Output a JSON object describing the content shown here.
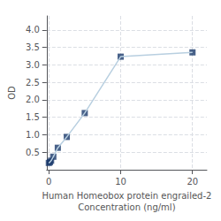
{
  "chart_data": {
    "type": "line",
    "xlabel": "Human Homeobox protein engrailed-2\nConcentration (ng/ml)",
    "ylabel": "OD",
    "x": [
      0,
      0.156,
      0.312,
      0.625,
      1.25,
      2.5,
      5,
      10,
      20
    ],
    "series": [
      {
        "type": "line",
        "color": "#b8cfe0",
        "values": [
          0.194,
          0.218,
          0.259,
          0.372,
          0.628,
          0.938,
          1.621,
          3.234,
          3.357
        ]
      },
      {
        "type": "scatter",
        "color": "#1a3a6b",
        "marker": "square",
        "values": [
          0.194,
          0.218,
          0.259,
          0.372,
          0.628,
          0.938,
          1.621,
          3.234,
          3.357
        ]
      }
    ],
    "xlim": [
      -0.3,
      22
    ],
    "ylim": [
      0,
      4.4
    ],
    "xticks": [
      0,
      10,
      20
    ],
    "yticks": [
      0.5,
      {
        "value": 1,
        "label": "1.0"
      },
      1.5,
      {
        "value": 2,
        "label": "2.0"
      },
      2.5,
      {
        "value": 3,
        "label": "3.0"
      },
      3.5,
      {
        "value": 4,
        "label": "4.0"
      }
    ],
    "grid": true
  }
}
